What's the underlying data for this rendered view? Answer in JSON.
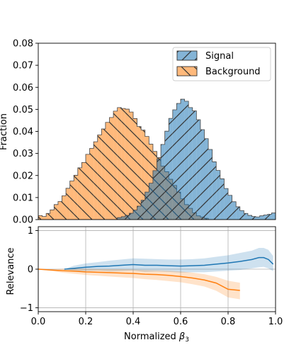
{
  "chart_data": [
    {
      "type": "bar",
      "panel": "histogram",
      "xlim": [
        0.0,
        1.0
      ],
      "ylim": [
        0.0,
        0.08
      ],
      "xlabel": "",
      "ylabel": "Fraction",
      "yticks": [
        "0.00",
        "0.01",
        "0.02",
        "0.03",
        "0.04",
        "0.05",
        "0.06",
        "0.07",
        "0.08"
      ],
      "grid": false,
      "legend_position": "top-right",
      "legend": [
        "Signal",
        "Background"
      ],
      "bin_width": 0.01667,
      "x": [
        0.0083,
        0.025,
        0.0417,
        0.0583,
        0.075,
        0.0917,
        0.1083,
        0.125,
        0.1417,
        0.1583,
        0.175,
        0.1917,
        0.2083,
        0.225,
        0.2417,
        0.2583,
        0.275,
        0.2917,
        0.3083,
        0.325,
        0.3417,
        0.3583,
        0.375,
        0.3917,
        0.4083,
        0.425,
        0.4417,
        0.4583,
        0.475,
        0.4917,
        0.5083,
        0.525,
        0.5417,
        0.5583,
        0.575,
        0.5917,
        0.6083,
        0.625,
        0.6417,
        0.6583,
        0.675,
        0.6917,
        0.7083,
        0.725,
        0.7417,
        0.7583,
        0.775,
        0.7917,
        0.8083,
        0.825,
        0.8417,
        0.8583,
        0.875,
        0.8917,
        0.9083,
        0.925,
        0.9417,
        0.9583,
        0.975,
        0.9917
      ],
      "series": [
        {
          "name": "Signal",
          "color": "#1f77b4",
          "hatch": "//",
          "values": [
            0.0,
            0.0,
            0.0,
            0.0,
            0.0,
            0.0,
            0.0,
            0.0,
            0.0,
            0.0,
            0.0,
            0.0,
            0.0,
            0.0,
            0.0,
            0.0,
            0.0,
            0.0,
            0.0,
            0.0,
            0.0009,
            0.0013,
            0.0019,
            0.0029,
            0.0043,
            0.0061,
            0.0088,
            0.0125,
            0.0165,
            0.0222,
            0.0276,
            0.0341,
            0.0401,
            0.0459,
            0.0498,
            0.0527,
            0.0546,
            0.0537,
            0.0508,
            0.0493,
            0.0453,
            0.0408,
            0.0367,
            0.0318,
            0.0262,
            0.0223,
            0.0185,
            0.0141,
            0.011,
            0.0081,
            0.0058,
            0.0041,
            0.0028,
            0.0019,
            0.0014,
            0.0012,
            0.0017,
            0.0021,
            0.0024,
            0.003
          ]
        },
        {
          "name": "Background",
          "color": "#ff7f0e",
          "hatch": "\\\\",
          "values": [
            0.0018,
            0.0014,
            0.0028,
            0.0044,
            0.0068,
            0.0082,
            0.0108,
            0.0142,
            0.0175,
            0.0201,
            0.0235,
            0.0259,
            0.0296,
            0.0323,
            0.0353,
            0.0384,
            0.0411,
            0.0441,
            0.0463,
            0.0492,
            0.0508,
            0.0504,
            0.0501,
            0.0488,
            0.0458,
            0.0422,
            0.0406,
            0.0377,
            0.0342,
            0.0309,
            0.0281,
            0.0243,
            0.0217,
            0.0183,
            0.0155,
            0.0125,
            0.0094,
            0.0068,
            0.0051,
            0.0031,
            0.0017,
            0.0011,
            0.0006,
            0.0,
            0.0,
            0.0,
            0.0,
            0.0,
            0.0,
            0.0,
            0.0,
            0.0,
            0.0,
            0.0,
            0.0,
            0.0,
            0.0,
            0.0,
            0.0,
            0.0
          ]
        }
      ]
    },
    {
      "type": "line",
      "panel": "relevance",
      "xlim": [
        0.0,
        1.0
      ],
      "ylim": [
        -1.1,
        1.1
      ],
      "xlabel": "Normalized β3",
      "xlabel_main": "Normalized ",
      "xlabel_symbol": "β",
      "xlabel_sub": "3",
      "ylabel": "Relevance",
      "xticks": [
        "0.0",
        "0.2",
        "0.4",
        "0.6",
        "0.8",
        "1.0"
      ],
      "yticks": [
        "−1",
        "0",
        "1"
      ],
      "grid": true,
      "series": [
        {
          "name": "Signal",
          "color": "#1f77b4",
          "x": [
            0.11,
            0.15,
            0.2,
            0.25,
            0.3,
            0.35,
            0.4,
            0.45,
            0.5,
            0.55,
            0.6,
            0.65,
            0.7,
            0.75,
            0.8,
            0.85,
            0.9,
            0.93,
            0.95,
            0.97,
            0.99
          ],
          "y": [
            0.0,
            0.02,
            0.05,
            0.07,
            0.08,
            0.1,
            0.12,
            0.1,
            0.1,
            0.09,
            0.08,
            0.09,
            0.1,
            0.13,
            0.16,
            0.2,
            0.25,
            0.3,
            0.3,
            0.25,
            0.13
          ],
          "upper": [
            0.0,
            0.09,
            0.15,
            0.18,
            0.22,
            0.25,
            0.28,
            0.27,
            0.26,
            0.25,
            0.25,
            0.26,
            0.28,
            0.32,
            0.36,
            0.42,
            0.48,
            0.55,
            0.55,
            0.5,
            0.34
          ],
          "lower": [
            0.0,
            -0.05,
            -0.05,
            -0.04,
            -0.06,
            -0.05,
            -0.04,
            -0.07,
            -0.06,
            -0.07,
            -0.09,
            -0.08,
            -0.08,
            -0.06,
            -0.04,
            -0.02,
            0.02,
            0.05,
            0.06,
            0.02,
            -0.05
          ]
        },
        {
          "name": "Background",
          "color": "#ff7f0e",
          "x": [
            0.0,
            0.05,
            0.1,
            0.15,
            0.2,
            0.25,
            0.3,
            0.35,
            0.4,
            0.45,
            0.5,
            0.55,
            0.6,
            0.65,
            0.7,
            0.75,
            0.8,
            0.85
          ],
          "y": [
            0.0,
            -0.02,
            -0.04,
            -0.05,
            -0.07,
            -0.08,
            -0.09,
            -0.1,
            -0.11,
            -0.13,
            -0.14,
            -0.16,
            -0.19,
            -0.23,
            -0.28,
            -0.36,
            -0.52,
            -0.55
          ],
          "upper": [
            0.0,
            -0.01,
            0.01,
            0.01,
            0.01,
            0.0,
            0.0,
            0.0,
            -0.01,
            -0.02,
            -0.03,
            -0.04,
            -0.06,
            -0.09,
            -0.13,
            -0.2,
            -0.3,
            -0.35
          ],
          "lower": [
            0.0,
            -0.04,
            -0.09,
            -0.12,
            -0.15,
            -0.17,
            -0.19,
            -0.21,
            -0.23,
            -0.26,
            -0.28,
            -0.31,
            -0.34,
            -0.39,
            -0.45,
            -0.56,
            -0.73,
            -0.78
          ]
        }
      ]
    }
  ]
}
